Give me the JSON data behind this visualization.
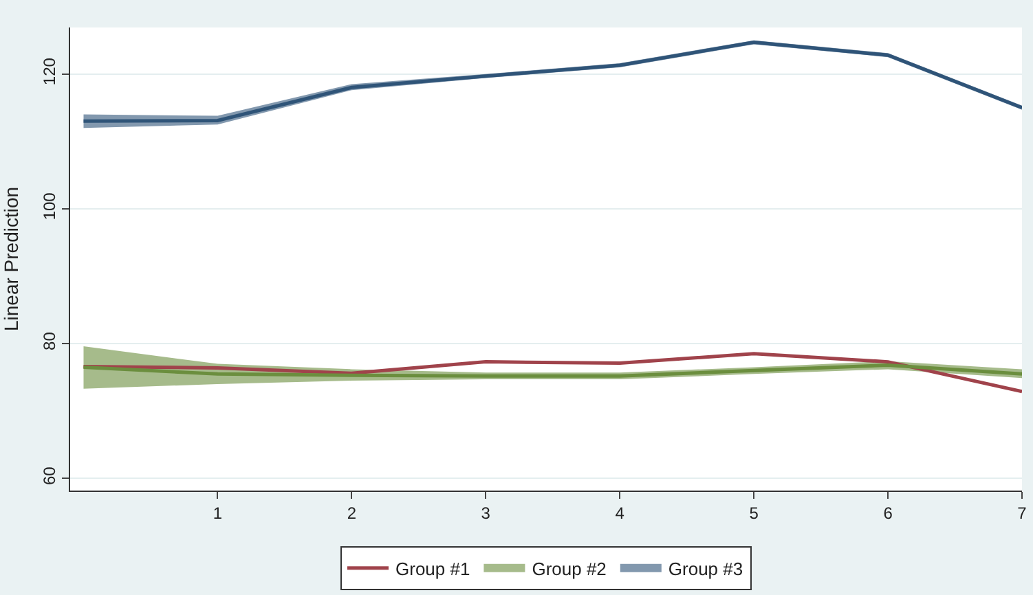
{
  "chart_data": {
    "type": "line",
    "ylabel": "Linear Prediction",
    "x": [
      0,
      1,
      2,
      3,
      4,
      5,
      6,
      7
    ],
    "series": [
      {
        "name": "Group #1",
        "color": "#a0434b",
        "values": [
          76.6,
          76.4,
          75.6,
          77.3,
          77.1,
          78.5,
          77.3,
          72.9
        ]
      },
      {
        "name": "Group #2",
        "color": "#6b8e3e",
        "values": [
          76.5,
          75.5,
          75.3,
          75.2,
          75.2,
          76.0,
          76.8,
          75.5
        ],
        "lower": [
          73.3,
          74.0,
          74.5,
          74.7,
          74.7,
          75.5,
          76.2,
          74.9
        ],
        "upper": [
          79.6,
          77.0,
          76.2,
          75.7,
          75.7,
          76.5,
          77.4,
          76.2
        ]
      },
      {
        "name": "Group #3",
        "color": "#2f5478",
        "values": [
          113.0,
          113.1,
          118.0,
          119.7,
          121.3,
          124.7,
          122.8,
          115.0
        ],
        "lower": [
          112.0,
          112.5,
          117.6,
          119.4,
          121.0,
          124.4,
          122.5,
          114.7
        ],
        "upper": [
          114.0,
          113.8,
          118.5,
          120.0,
          121.6,
          125.0,
          123.1,
          115.3
        ]
      }
    ],
    "xlim": [
      -0.1,
      7
    ],
    "xticks": [
      1,
      2,
      3,
      4,
      5,
      6,
      7
    ],
    "ylim": [
      58.2,
      126.9
    ],
    "yticks": [
      60,
      80,
      100,
      120
    ],
    "grid": "y",
    "legend": "bottom",
    "marker": "none",
    "line_style": "solid"
  }
}
